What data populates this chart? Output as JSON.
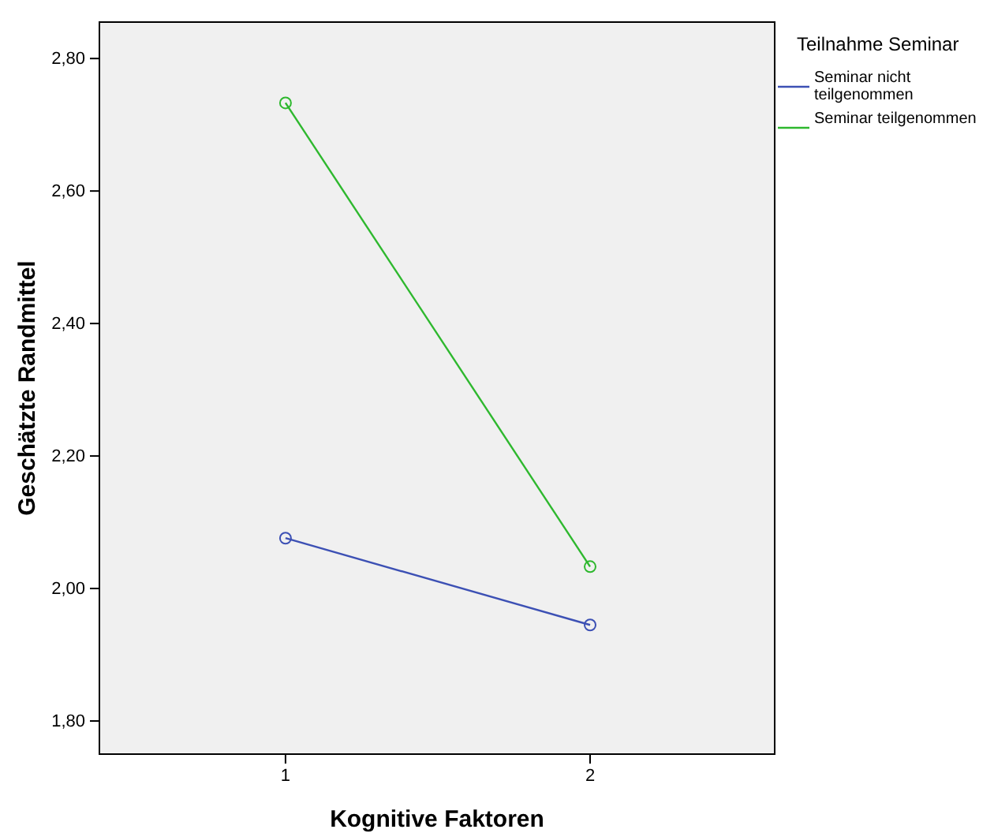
{
  "chart_data": {
    "type": "line",
    "xlabel": "Kognitive Faktoren",
    "ylabel": "Geschätzte Randmittel",
    "legend_title": "Teilnahme Seminar",
    "x": [
      1,
      2
    ],
    "xlim": [
      0.389,
      2.606
    ],
    "xticks": [
      1,
      2
    ],
    "series": [
      {
        "name": "Seminar nicht teilgenommen",
        "color": "#3c50b4",
        "values": [
          2.076,
          1.945
        ]
      },
      {
        "name": "Seminar teilgenommen",
        "color": "#2eb82e",
        "values": [
          2.733,
          2.033
        ]
      }
    ],
    "ylim": [
      1.75,
      2.855
    ],
    "yticks": [
      {
        "value": 1.8,
        "label": "1,80"
      },
      {
        "value": 2.0,
        "label": "2,00"
      },
      {
        "value": 2.2,
        "label": "2,20"
      },
      {
        "value": 2.4,
        "label": "2,40"
      },
      {
        "value": 2.6,
        "label": "2,60"
      },
      {
        "value": 2.8,
        "label": "2,80"
      }
    ],
    "marker": "circle",
    "grid": false,
    "legend": "right"
  }
}
